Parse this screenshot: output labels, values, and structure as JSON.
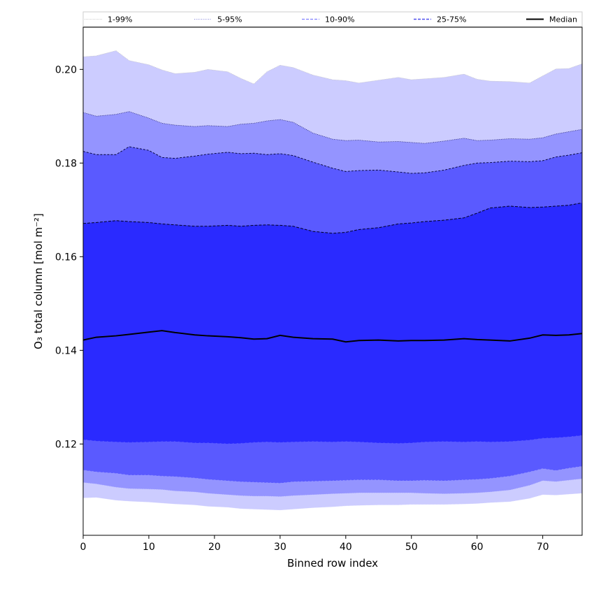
{
  "chart_data": {
    "type": "area",
    "xlabel": "Binned row index",
    "ylabel": "O₃ total column [mol m⁻²]",
    "xlim": [
      0,
      76
    ],
    "ylim": [
      0.1005,
      0.209
    ],
    "x_ticks": [
      0,
      10,
      20,
      30,
      40,
      50,
      60,
      70
    ],
    "y_ticks": [
      0.12,
      0.14,
      0.16,
      0.18,
      0.2
    ],
    "x_tick_labels": [
      "0",
      "10",
      "20",
      "30",
      "40",
      "50",
      "60",
      "70"
    ],
    "y_tick_labels": [
      "0.12",
      "0.14",
      "0.16",
      "0.18",
      "0.20"
    ],
    "grid": false,
    "legend_position": "top",
    "colors": {
      "band_1_99": "#ccccff",
      "band_5_95": "#9494ff",
      "band_10_90": "#5a5aff",
      "band_25_75": "#2a2aff",
      "median": "#000000"
    },
    "legend": [
      {
        "label": "1-99%",
        "key": "band_1_99"
      },
      {
        "label": "5-95%",
        "key": "band_5_95"
      },
      {
        "label": "10-90%",
        "key": "band_10_90"
      },
      {
        "label": "25-75%",
        "key": "band_25_75"
      },
      {
        "label": "Median",
        "key": "median"
      }
    ],
    "x": [
      0,
      2,
      5,
      7,
      10,
      12,
      14,
      17,
      19,
      22,
      24,
      26,
      28,
      30,
      32,
      35,
      38,
      40,
      42,
      45,
      48,
      50,
      52,
      55,
      58,
      60,
      62,
      65,
      68,
      70,
      72,
      74,
      76
    ],
    "series": [
      {
        "name": "1-99%",
        "upper": [
          0.2027,
          0.2029,
          0.204,
          0.2019,
          0.201,
          0.1999,
          0.1991,
          0.1994,
          0.2,
          0.1995,
          0.1981,
          0.1969,
          0.1995,
          0.2009,
          0.2004,
          0.1988,
          0.1978,
          0.1976,
          0.1971,
          0.1977,
          0.1983,
          0.1978,
          0.198,
          0.1983,
          0.199,
          0.1979,
          0.1975,
          0.1974,
          0.1971,
          0.1986,
          0.2001,
          0.2002,
          0.2012
        ],
        "lower": [
          0.1085,
          0.1086,
          0.108,
          0.1078,
          0.1076,
          0.1074,
          0.1072,
          0.107,
          0.1067,
          0.1065,
          0.1062,
          0.1061,
          0.106,
          0.1059,
          0.1061,
          0.1064,
          0.1066,
          0.1068,
          0.1069,
          0.107,
          0.107,
          0.1071,
          0.1071,
          0.1071,
          0.1072,
          0.1073,
          0.1075,
          0.1077,
          0.1084,
          0.1092,
          0.1091,
          0.1093,
          0.1095
        ]
      },
      {
        "name": "5-95%",
        "upper": [
          0.1908,
          0.19,
          0.1904,
          0.191,
          0.1896,
          0.1885,
          0.1881,
          0.1878,
          0.188,
          0.1878,
          0.1883,
          0.1885,
          0.189,
          0.1893,
          0.1887,
          0.1864,
          0.1851,
          0.1848,
          0.1849,
          0.1845,
          0.1846,
          0.1844,
          0.1842,
          0.1847,
          0.1853,
          0.1848,
          0.1849,
          0.1852,
          0.1851,
          0.1854,
          0.1862,
          0.1867,
          0.1872
        ],
        "lower": [
          0.1118,
          0.1115,
          0.1108,
          0.1105,
          0.1104,
          0.1103,
          0.11,
          0.1098,
          0.1095,
          0.1092,
          0.109,
          0.1089,
          0.1089,
          0.1088,
          0.109,
          0.1092,
          0.1094,
          0.1095,
          0.1096,
          0.1096,
          0.1096,
          0.1096,
          0.1095,
          0.1094,
          0.1095,
          0.1096,
          0.1098,
          0.1102,
          0.1112,
          0.1122,
          0.112,
          0.1123,
          0.1126
        ]
      },
      {
        "name": "10-90%",
        "upper": [
          0.1825,
          0.1818,
          0.1818,
          0.1835,
          0.1827,
          0.1812,
          0.181,
          0.1815,
          0.1819,
          0.1823,
          0.182,
          0.1821,
          0.1818,
          0.182,
          0.1816,
          0.1802,
          0.1789,
          0.1782,
          0.1784,
          0.1785,
          0.1781,
          0.1778,
          0.1779,
          0.1785,
          0.1795,
          0.18,
          0.1801,
          0.1804,
          0.1803,
          0.1805,
          0.1813,
          0.1817,
          0.1822
        ],
        "lower": [
          0.1145,
          0.1141,
          0.1138,
          0.1134,
          0.1134,
          0.1132,
          0.1131,
          0.1128,
          0.1125,
          0.1122,
          0.112,
          0.1119,
          0.1118,
          0.1117,
          0.112,
          0.1121,
          0.1122,
          0.1123,
          0.1124,
          0.1124,
          0.1122,
          0.1122,
          0.1123,
          0.1122,
          0.1124,
          0.1125,
          0.1127,
          0.1132,
          0.1141,
          0.1148,
          0.1144,
          0.1149,
          0.1153
        ]
      },
      {
        "name": "25-75%",
        "upper": [
          0.1671,
          0.1673,
          0.1677,
          0.1675,
          0.1673,
          0.167,
          0.1668,
          0.1665,
          0.1665,
          0.1667,
          0.1665,
          0.1667,
          0.1668,
          0.1667,
          0.1665,
          0.1654,
          0.165,
          0.1652,
          0.1658,
          0.1662,
          0.167,
          0.1672,
          0.1675,
          0.1678,
          0.1683,
          0.1693,
          0.1704,
          0.1708,
          0.1705,
          0.1706,
          0.1708,
          0.171,
          0.1715
        ],
        "lower": [
          0.121,
          0.1207,
          0.1205,
          0.1204,
          0.1205,
          0.1206,
          0.1206,
          0.1203,
          0.1203,
          0.1201,
          0.1202,
          0.1204,
          0.1205,
          0.1204,
          0.1205,
          0.1206,
          0.1205,
          0.1206,
          0.1205,
          0.1203,
          0.1202,
          0.1203,
          0.1205,
          0.1206,
          0.1205,
          0.1206,
          0.1205,
          0.1206,
          0.1209,
          0.1213,
          0.1214,
          0.1216,
          0.1219
        ]
      },
      {
        "name": "Median",
        "values": [
          0.1422,
          0.1428,
          0.1431,
          0.1434,
          0.1439,
          0.1442,
          0.1438,
          0.1433,
          0.1431,
          0.1429,
          0.1427,
          0.1424,
          0.1425,
          0.1432,
          0.1428,
          0.1425,
          0.1424,
          0.1418,
          0.1421,
          0.1422,
          0.142,
          0.1421,
          0.1421,
          0.1422,
          0.1425,
          0.1423,
          0.1422,
          0.142,
          0.1426,
          0.1433,
          0.1432,
          0.1433,
          0.1436
        ]
      }
    ]
  }
}
